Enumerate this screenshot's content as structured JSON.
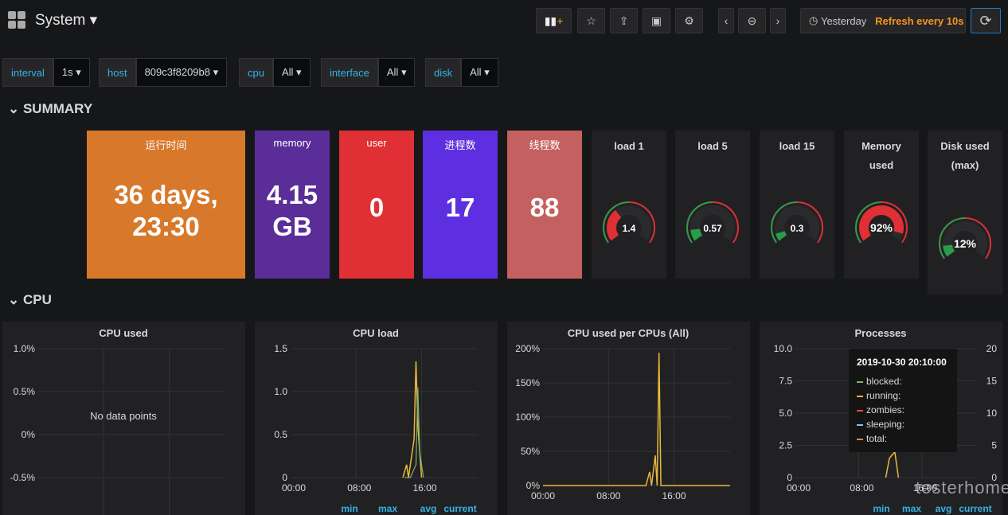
{
  "header": {
    "title": "System",
    "time_range": "Yesterday",
    "refresh": "Refresh every 10s"
  },
  "variables": [
    {
      "label": "interval",
      "value": "1s"
    },
    {
      "label": "host",
      "value": "809c3f8209b8"
    },
    {
      "label": "cpu",
      "value": "All"
    },
    {
      "label": "interface",
      "value": "All"
    },
    {
      "label": "disk",
      "value": "All"
    }
  ],
  "rows": [
    "SUMMARY",
    "CPU"
  ],
  "stats": [
    {
      "title": "运行时间",
      "value": "36 days, 23:30",
      "color": "#d8782a"
    },
    {
      "title": "memory",
      "value": "4.15 GB",
      "color": "#5a2d99"
    },
    {
      "title": "user",
      "value": "0",
      "color": "#e02f35"
    },
    {
      "title": "进程数",
      "value": "17",
      "color": "#5d2fe0"
    },
    {
      "title": "线程数",
      "value": "88",
      "color": "#c4605f"
    }
  ],
  "gauges": [
    {
      "title": "load 1",
      "value": "1.4"
    },
    {
      "title": "load 5",
      "value": "0.57"
    },
    {
      "title": "load 15",
      "value": "0.3"
    },
    {
      "title": "Memory used",
      "value": "92%"
    },
    {
      "title": "Disk used (max)",
      "value": "12%"
    }
  ],
  "panels": [
    {
      "title": "CPU used",
      "yticks": [
        "1.0%",
        "0.5%",
        "0%",
        "-0.5%"
      ],
      "message": "No data points"
    },
    {
      "title": "CPU load",
      "yticks": [
        "1.5",
        "1.0",
        "0.5",
        "0"
      ],
      "xticks": [
        "00:00",
        "08:00",
        "16:00"
      ],
      "legend": [
        "min",
        "max",
        "avg",
        "current"
      ]
    },
    {
      "title": "CPU used per CPUs (All)",
      "yticks": [
        "200%",
        "150%",
        "100%",
        "50%",
        "0%"
      ],
      "xticks": [
        "00:00",
        "08:00",
        "16:00"
      ]
    },
    {
      "title": "Processes",
      "yticks": [
        "10.0",
        "7.5",
        "5.0",
        "2.5",
        "0"
      ],
      "y2ticks": [
        "20",
        "15",
        "10",
        "5",
        "0"
      ],
      "xticks": [
        "00:00",
        "08:00",
        "16:00"
      ],
      "legend": [
        "min",
        "max",
        "avg",
        "current"
      ],
      "tooltip": {
        "time": "2019-10-30 20:10:00",
        "items": [
          {
            "name": "blocked:",
            "color": "#7eb26d"
          },
          {
            "name": "running:",
            "color": "#eab839"
          },
          {
            "name": "zombies:",
            "color": "#e24d42"
          },
          {
            "name": "sleeping:",
            "color": "#6ed0e0"
          },
          {
            "name": "total:",
            "color": "#ef843c"
          }
        ]
      }
    }
  ],
  "watermark": "testerhome.com"
}
